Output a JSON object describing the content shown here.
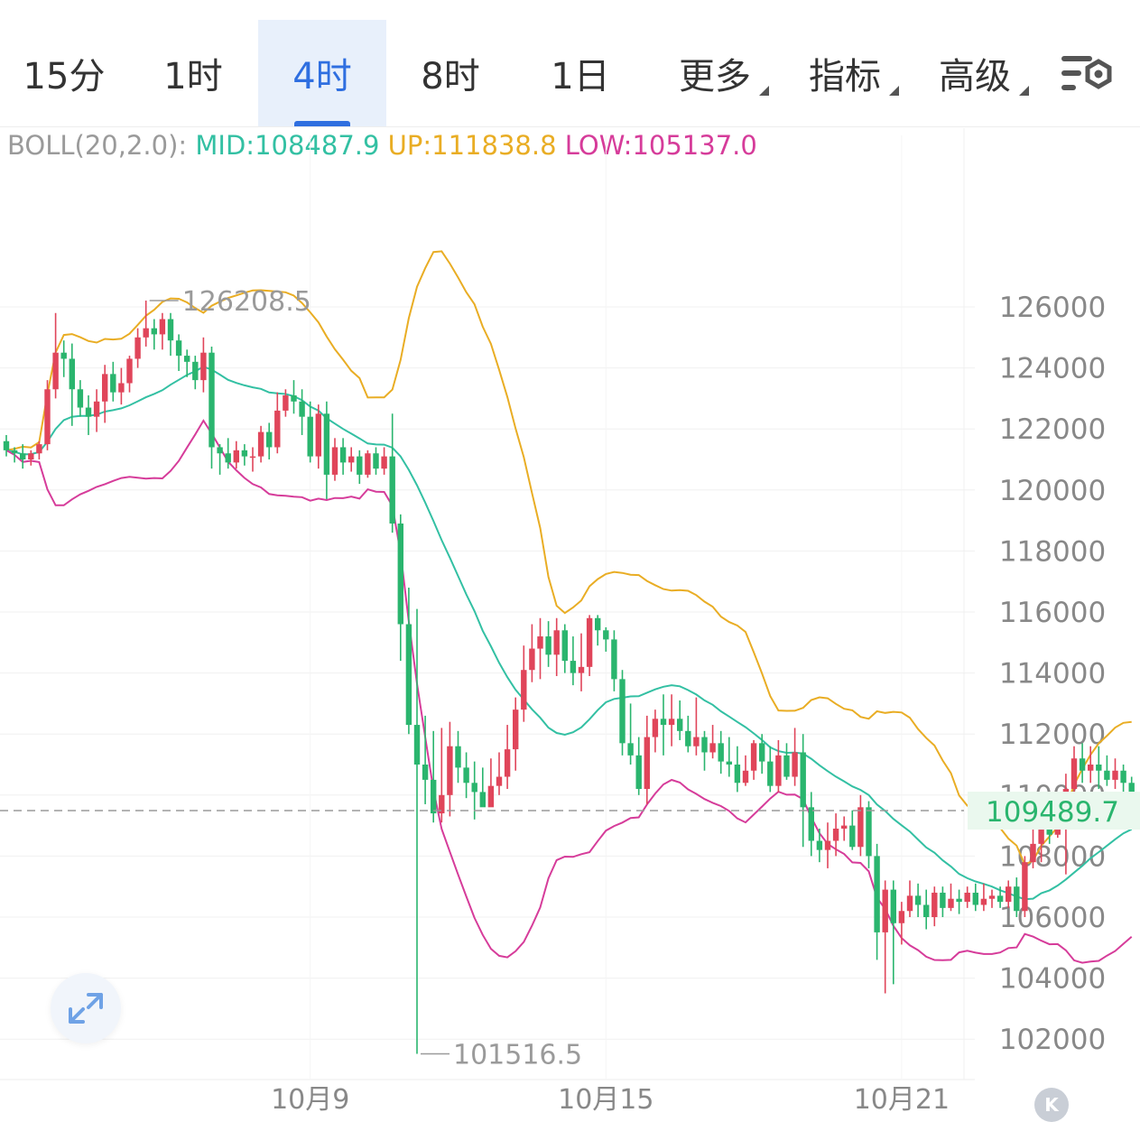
{
  "tabs": [
    {
      "label": "15分",
      "active": false
    },
    {
      "label": "1时",
      "active": false
    },
    {
      "label": "4时",
      "active": true
    },
    {
      "label": "8时",
      "active": false
    },
    {
      "label": "1日",
      "active": false
    },
    {
      "label": "更多",
      "active": false,
      "dropdown": true
    },
    {
      "label": "指标",
      "active": false,
      "dropdown": true
    },
    {
      "label": "高级",
      "active": false,
      "dropdown": true
    }
  ],
  "settings_icon": "chart-settings-icon",
  "indicator": {
    "name": "BOLL(20,2.0):",
    "mid": "MID:108487.9",
    "up": "UP:111838.8",
    "low": "LOW:105137.0"
  },
  "colors": {
    "up_candle": "#e0455a",
    "down_candle": "#2ab56e",
    "mid": "#33c0a3",
    "upper": "#e9ad24",
    "lower": "#d63c9a",
    "active_tab": "#2f6fe0",
    "price_tag_bg": "#eaf8ee",
    "price_tag_text": "#2ab56e"
  },
  "chart_data": {
    "type": "candlestick",
    "timeframe": "4时",
    "y_ticks": [
      "126000",
      "124000",
      "122000",
      "120000",
      "118000",
      "116000",
      "114000",
      "112000",
      "110000",
      "108000",
      "106000",
      "104000",
      "102000"
    ],
    "ylim": [
      101000,
      130000
    ],
    "x_ticks": [
      {
        "label": "10月9",
        "index": 37
      },
      {
        "label": "10月15",
        "index": 73
      },
      {
        "label": "10月21",
        "index": 109
      }
    ],
    "current_price": "109489.7",
    "high_marker": "126208.5",
    "low_marker": "101516.5",
    "candles": [
      [
        121600,
        121300,
        121800,
        121100
      ],
      [
        121300,
        121200,
        121400,
        120900
      ],
      [
        121200,
        121000,
        121500,
        120700
      ],
      [
        121000,
        121200,
        121300,
        120800
      ],
      [
        121200,
        121500,
        121600,
        121000
      ],
      [
        121500,
        123300,
        123600,
        121300
      ],
      [
        123300,
        124500,
        125800,
        123000
      ],
      [
        124500,
        124300,
        124900,
        123700
      ],
      [
        124300,
        123300,
        124800,
        122100
      ],
      [
        123300,
        122700,
        123600,
        122400
      ],
      [
        122700,
        122400,
        123100,
        121800
      ],
      [
        122400,
        122900,
        123300,
        121900
      ],
      [
        122900,
        123800,
        124100,
        122200
      ],
      [
        123800,
        123200,
        124200,
        122900
      ],
      [
        123200,
        123500,
        124000,
        122800
      ],
      [
        123500,
        124300,
        124400,
        123200
      ],
      [
        124300,
        125000,
        125300,
        124000
      ],
      [
        125000,
        125300,
        126208,
        124700
      ],
      [
        125300,
        125100,
        125600,
        124600
      ],
      [
        125100,
        125600,
        125800,
        124600
      ],
      [
        125600,
        124900,
        125800,
        124400
      ],
      [
        124900,
        124400,
        125100,
        123900
      ],
      [
        124400,
        124200,
        124600,
        123700
      ],
      [
        124200,
        123600,
        124400,
        123300
      ],
      [
        123600,
        124500,
        125000,
        123200
      ],
      [
        124500,
        121400,
        124700,
        120700
      ],
      [
        121400,
        121200,
        121500,
        120500
      ],
      [
        121200,
        120900,
        121700,
        120700
      ],
      [
        120900,
        121300,
        121600,
        120700
      ],
      [
        121300,
        121100,
        121500,
        120800
      ],
      [
        121100,
        121100,
        121400,
        120600
      ],
      [
        121100,
        121900,
        122100,
        120900
      ],
      [
        121900,
        121400,
        122200,
        121000
      ],
      [
        121400,
        122600,
        123200,
        121200
      ],
      [
        122600,
        123100,
        123300,
        122400
      ],
      [
        123100,
        122900,
        123600,
        122500
      ],
      [
        122900,
        122400,
        123300,
        121800
      ],
      [
        122400,
        121100,
        122900,
        120900
      ],
      [
        121100,
        122500,
        122800,
        120700
      ],
      [
        122500,
        120500,
        122900,
        119700
      ],
      [
        120500,
        121400,
        121700,
        120300
      ],
      [
        121400,
        120900,
        121700,
        120500
      ],
      [
        120900,
        121100,
        121400,
        120600
      ],
      [
        121100,
        120500,
        121300,
        120200
      ],
      [
        120500,
        121200,
        121300,
        120400
      ],
      [
        121200,
        120700,
        121400,
        120500
      ],
      [
        120700,
        121100,
        121400,
        120500
      ],
      [
        121100,
        118900,
        122500,
        118600
      ],
      [
        118900,
        115600,
        119200,
        114400
      ],
      [
        115600,
        112300,
        116800,
        112000
      ],
      [
        112300,
        111000,
        116100,
        101516
      ],
      [
        111000,
        110500,
        112600,
        109700
      ],
      [
        110500,
        109400,
        112100,
        109100
      ],
      [
        109400,
        110000,
        112200,
        109100
      ],
      [
        110000,
        111600,
        112400,
        109300
      ],
      [
        111600,
        110900,
        112100,
        110400
      ],
      [
        110900,
        110400,
        111400,
        109900
      ],
      [
        110400,
        110100,
        111100,
        109200
      ],
      [
        110100,
        109600,
        110900,
        109700
      ],
      [
        109600,
        110300,
        111200,
        109800
      ],
      [
        110300,
        110600,
        111400,
        110000
      ],
      [
        110600,
        111500,
        112300,
        110200
      ],
      [
        111500,
        112800,
        113200,
        110800
      ],
      [
        112800,
        114100,
        114900,
        112400
      ],
      [
        114100,
        114800,
        115600,
        113700
      ],
      [
        114800,
        115200,
        115800,
        113800
      ],
      [
        115200,
        114600,
        115700,
        114200
      ],
      [
        114600,
        115400,
        115800,
        113900
      ],
      [
        115400,
        114400,
        115600,
        114000
      ],
      [
        114400,
        114000,
        115200,
        113600
      ],
      [
        114000,
        114200,
        115300,
        113400
      ],
      [
        114200,
        115800,
        115900,
        113900
      ],
      [
        115800,
        115400,
        115900,
        114900
      ],
      [
        115400,
        115100,
        115500,
        114700
      ],
      [
        115100,
        113800,
        115400,
        113400
      ],
      [
        113800,
        111700,
        114100,
        111300
      ],
      [
        111700,
        111300,
        113000,
        111000
      ],
      [
        111300,
        110200,
        111900,
        110000
      ],
      [
        110200,
        111900,
        112600,
        109700
      ],
      [
        111900,
        112500,
        112800,
        111400
      ],
      [
        112500,
        112300,
        113300,
        111300
      ],
      [
        112300,
        112500,
        113300,
        111600
      ],
      [
        112500,
        112100,
        113100,
        111800
      ],
      [
        112100,
        111600,
        112600,
        111400
      ],
      [
        111600,
        111900,
        113200,
        111300
      ],
      [
        111900,
        111400,
        112100,
        110800
      ],
      [
        111400,
        111700,
        112300,
        111200
      ],
      [
        111700,
        111100,
        112100,
        110700
      ],
      [
        111100,
        111000,
        111900,
        110600
      ],
      [
        111000,
        110400,
        111600,
        110100
      ],
      [
        110400,
        110800,
        111300,
        110300
      ],
      [
        110800,
        111700,
        111800,
        110500
      ],
      [
        111700,
        111100,
        112000,
        110700
      ],
      [
        111100,
        110300,
        111600,
        110100
      ],
      [
        110300,
        111300,
        111800,
        110100
      ],
      [
        111300,
        110600,
        111700,
        110500
      ],
      [
        110600,
        111400,
        112200,
        110300
      ],
      [
        111400,
        109600,
        112000,
        108300
      ],
      [
        109600,
        108500,
        110100,
        108000
      ],
      [
        108500,
        108200,
        108900,
        107800
      ],
      [
        108200,
        108500,
        109100,
        107600
      ],
      [
        108500,
        108900,
        109400,
        108000
      ],
      [
        108900,
        109000,
        109300,
        108500
      ],
      [
        109000,
        108300,
        109500,
        108200
      ],
      [
        108300,
        109600,
        110000,
        108000
      ],
      [
        109600,
        108000,
        109800,
        107600
      ],
      [
        108000,
        105500,
        108400,
        104600
      ],
      [
        105500,
        106900,
        107200,
        103500
      ],
      [
        106900,
        105800,
        107200,
        103800
      ],
      [
        105800,
        106200,
        106500,
        105100
      ],
      [
        106200,
        106700,
        107200,
        106000
      ],
      [
        106700,
        106400,
        107100,
        106000
      ],
      [
        106400,
        106000,
        106900,
        105600
      ],
      [
        106000,
        106800,
        107000,
        105700
      ],
      [
        106800,
        106300,
        107000,
        106000
      ],
      [
        106300,
        106600,
        107100,
        106200
      ],
      [
        106600,
        106500,
        106900,
        106100
      ],
      [
        106500,
        106800,
        107000,
        106300
      ],
      [
        106800,
        106400,
        107100,
        106200
      ],
      [
        106400,
        106600,
        107100,
        106200
      ],
      [
        106600,
        106700,
        106900,
        106300
      ],
      [
        106700,
        106500,
        107000,
        106300
      ],
      [
        106500,
        107000,
        107200,
        106300
      ],
      [
        107000,
        106200,
        107300,
        106000
      ],
      [
        106200,
        107800,
        108000,
        106000
      ],
      [
        107800,
        108400,
        108900,
        107600
      ],
      [
        108400,
        109100,
        109600,
        107800
      ],
      [
        109100,
        108700,
        109400,
        108400
      ],
      [
        108700,
        109000,
        109500,
        108600
      ],
      [
        109000,
        110200,
        110700,
        107400
      ],
      [
        110200,
        111200,
        111600,
        109400
      ],
      [
        111200,
        110800,
        111700,
        110400
      ],
      [
        110800,
        111000,
        111600,
        110400
      ],
      [
        111000,
        110800,
        111600,
        110200
      ],
      [
        110800,
        110500,
        111300,
        110300
      ],
      [
        110500,
        110800,
        111200,
        110200
      ],
      [
        110800,
        110400,
        111000,
        109900
      ],
      [
        110400,
        109489.7,
        110600,
        109300
      ]
    ]
  }
}
